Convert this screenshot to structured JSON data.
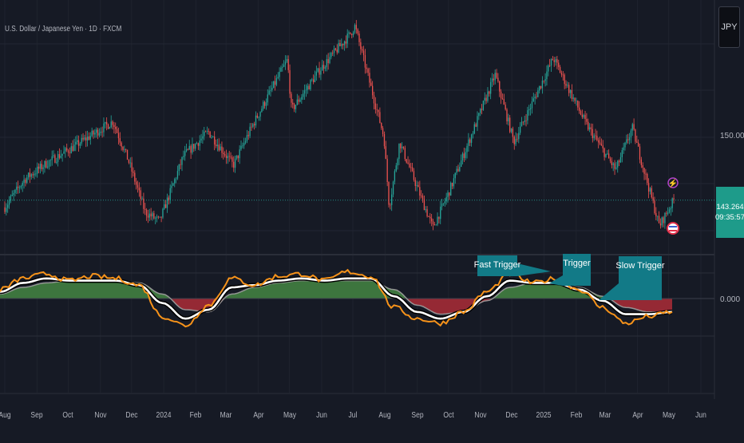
{
  "header": {
    "title": "U.S. Dollar / Japanese Yen · 1D · FXCM"
  },
  "currency_button": {
    "label": "JPY"
  },
  "price_axis": {
    "labels": [
      "150.000",
      "0.000"
    ]
  },
  "price_tag": {
    "price": "143.264",
    "countdown": "09:35:57"
  },
  "annotations": [
    "Fast Trigger",
    "Trigger",
    "Slow Trigger"
  ],
  "time_axis": {
    "labels": [
      "Aug",
      "Sep",
      "Oct",
      "Nov",
      "Dec",
      "2024",
      "Feb",
      "Mar",
      "Apr",
      "May",
      "Jun",
      "Jul",
      "Aug",
      "Sep",
      "Oct",
      "Nov",
      "Dec",
      "2025",
      "Feb",
      "Mar",
      "Apr",
      "May",
      "Jun"
    ]
  },
  "colors": {
    "background": "#161a25",
    "up": "#26a69a",
    "down": "#ef5350",
    "fast": "#f7931a",
    "trigger": "#ffffff",
    "slow": "#9e9e9e",
    "fill_pos": "#3f7a3f",
    "fill_neg": "#9c2a35",
    "label_bg": "#127a87"
  },
  "chart_data": [
    {
      "type": "candlestick",
      "title": "U.S. Dollar / Japanese Yen · 1D · FXCM",
      "x_ticks": [
        "Aug",
        "Sep",
        "Oct",
        "Nov",
        "Dec",
        "2024",
        "Feb",
        "Mar",
        "Apr",
        "May",
        "Jun",
        "Jul",
        "Aug",
        "Sep",
        "Oct",
        "Nov",
        "Dec",
        "2025",
        "Feb",
        "Mar",
        "Apr",
        "May",
        "Jun"
      ],
      "y_tick_labels": [
        "150.000"
      ],
      "last_price": 143.264,
      "close_path": [
        {
          "x": "2023-08-01",
          "y": 142.5
        },
        {
          "x": "2023-08-20",
          "y": 145.5
        },
        {
          "x": "2023-09-10",
          "y": 147.2
        },
        {
          "x": "2023-10-05",
          "y": 148.9
        },
        {
          "x": "2023-11-13",
          "y": 151.7
        },
        {
          "x": "2023-11-28",
          "y": 147.5
        },
        {
          "x": "2023-12-14",
          "y": 142.0
        },
        {
          "x": "2023-12-28",
          "y": 141.0
        },
        {
          "x": "2024-01-20",
          "y": 148.0
        },
        {
          "x": "2024-02-13",
          "y": 150.6
        },
        {
          "x": "2024-03-08",
          "y": 147.0
        },
        {
          "x": "2024-03-27",
          "y": 151.4
        },
        {
          "x": "2024-04-29",
          "y": 158.3
        },
        {
          "x": "2024-05-03",
          "y": 152.9
        },
        {
          "x": "2024-05-30",
          "y": 157.2
        },
        {
          "x": "2024-06-28",
          "y": 161.0
        },
        {
          "x": "2024-07-03",
          "y": 161.9
        },
        {
          "x": "2024-07-31",
          "y": 150.0
        },
        {
          "x": "2024-08-05",
          "y": 142.5
        },
        {
          "x": "2024-08-15",
          "y": 149.5
        },
        {
          "x": "2024-09-16",
          "y": 140.3
        },
        {
          "x": "2024-10-01",
          "y": 144.0
        },
        {
          "x": "2024-11-15",
          "y": 156.7
        },
        {
          "x": "2024-12-03",
          "y": 149.5
        },
        {
          "x": "2025-01-10",
          "y": 158.5
        },
        {
          "x": "2025-02-10",
          "y": 151.5
        },
        {
          "x": "2025-03-11",
          "y": 146.5
        },
        {
          "x": "2025-03-27",
          "y": 151.0
        },
        {
          "x": "2025-04-22",
          "y": 140.5
        },
        {
          "x": "2025-05-06",
          "y": 143.3
        }
      ]
    },
    {
      "type": "line",
      "series": [
        {
          "name": "Fast Trigger",
          "values": [
            0.4,
            0.9,
            1.1,
            0.8,
            1.0,
            0.9,
            0.6,
            -0.8,
            -1.2,
            -0.3,
            0.9,
            0.6,
            1.0,
            1.1,
            0.8,
            1.2,
            1.0,
            -0.4,
            -0.9,
            -1.1,
            -0.6,
            0.3,
            1.1,
            0.7,
            0.9,
            0.4,
            -0.4,
            -1.1,
            -0.8,
            -0.6
          ]
        },
        {
          "name": "Trigger",
          "values": [
            0.3,
            0.7,
            0.9,
            0.8,
            0.8,
            0.8,
            0.6,
            -0.2,
            -0.9,
            -0.5,
            0.5,
            0.6,
            0.8,
            0.9,
            0.8,
            0.9,
            0.9,
            0.1,
            -0.6,
            -0.9,
            -0.6,
            0.1,
            0.8,
            0.7,
            0.7,
            0.4,
            -0.1,
            -0.7,
            -0.7,
            -0.6
          ]
        },
        {
          "name": "Slow Trigger",
          "values": [
            0.2,
            0.5,
            0.7,
            0.8,
            0.8,
            0.8,
            0.7,
            0.2,
            -0.5,
            -0.6,
            0.2,
            0.5,
            0.7,
            0.8,
            0.8,
            0.8,
            0.8,
            0.4,
            -0.3,
            -0.7,
            -0.6,
            -0.1,
            0.5,
            0.7,
            0.7,
            0.5,
            0.1,
            -0.4,
            -0.6,
            -0.6
          ]
        }
      ],
      "y_tick_labels": [
        "0.000"
      ],
      "zero_line": 0
    }
  ]
}
